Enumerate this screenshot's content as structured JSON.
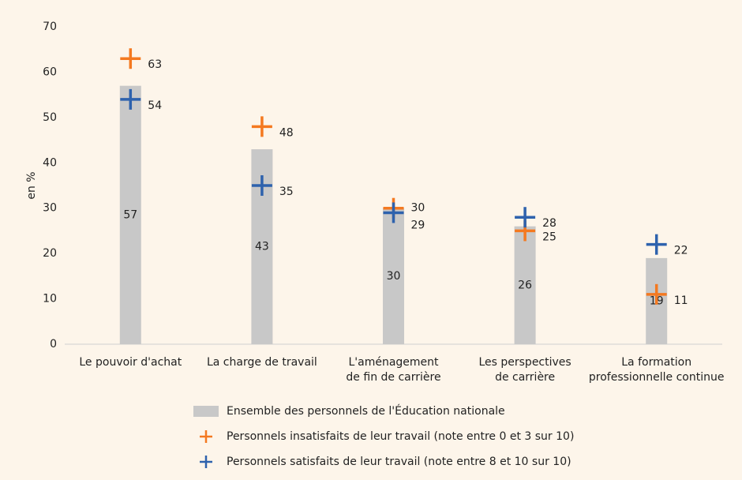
{
  "chart_data": {
    "type": "bar",
    "y_label": "en %",
    "categories": [
      [
        "Le pouvoir d'achat"
      ],
      [
        "La charge de travail"
      ],
      [
        "L'aménagement",
        "de fin de carrière"
      ],
      [
        "Les perspectives",
        "de carrière"
      ],
      [
        "La formation",
        "professionnelle continue"
      ]
    ],
    "ylim": [
      0,
      70
    ],
    "yticks": [
      0,
      10,
      20,
      30,
      40,
      50,
      60,
      70
    ],
    "grid": false,
    "series": [
      {
        "name": "Ensemble des personnels de l'Éducation nationale",
        "type": "bar",
        "color": "#c8c8c8",
        "values": [
          57,
          43,
          30,
          26,
          19
        ]
      },
      {
        "name": "Personnels insatisfaits de leur travail (note entre 0 et 3 sur 10)",
        "type": "cross",
        "color": "#f47920",
        "values": [
          63,
          48,
          30,
          25,
          11
        ]
      },
      {
        "name": "Personnels satisfaits de leur travail (note entre 8 et 10 sur 10)",
        "type": "cross",
        "color": "#2e62ad",
        "values": [
          54,
          35,
          29,
          28,
          22
        ]
      }
    ],
    "legend": "bottom"
  }
}
